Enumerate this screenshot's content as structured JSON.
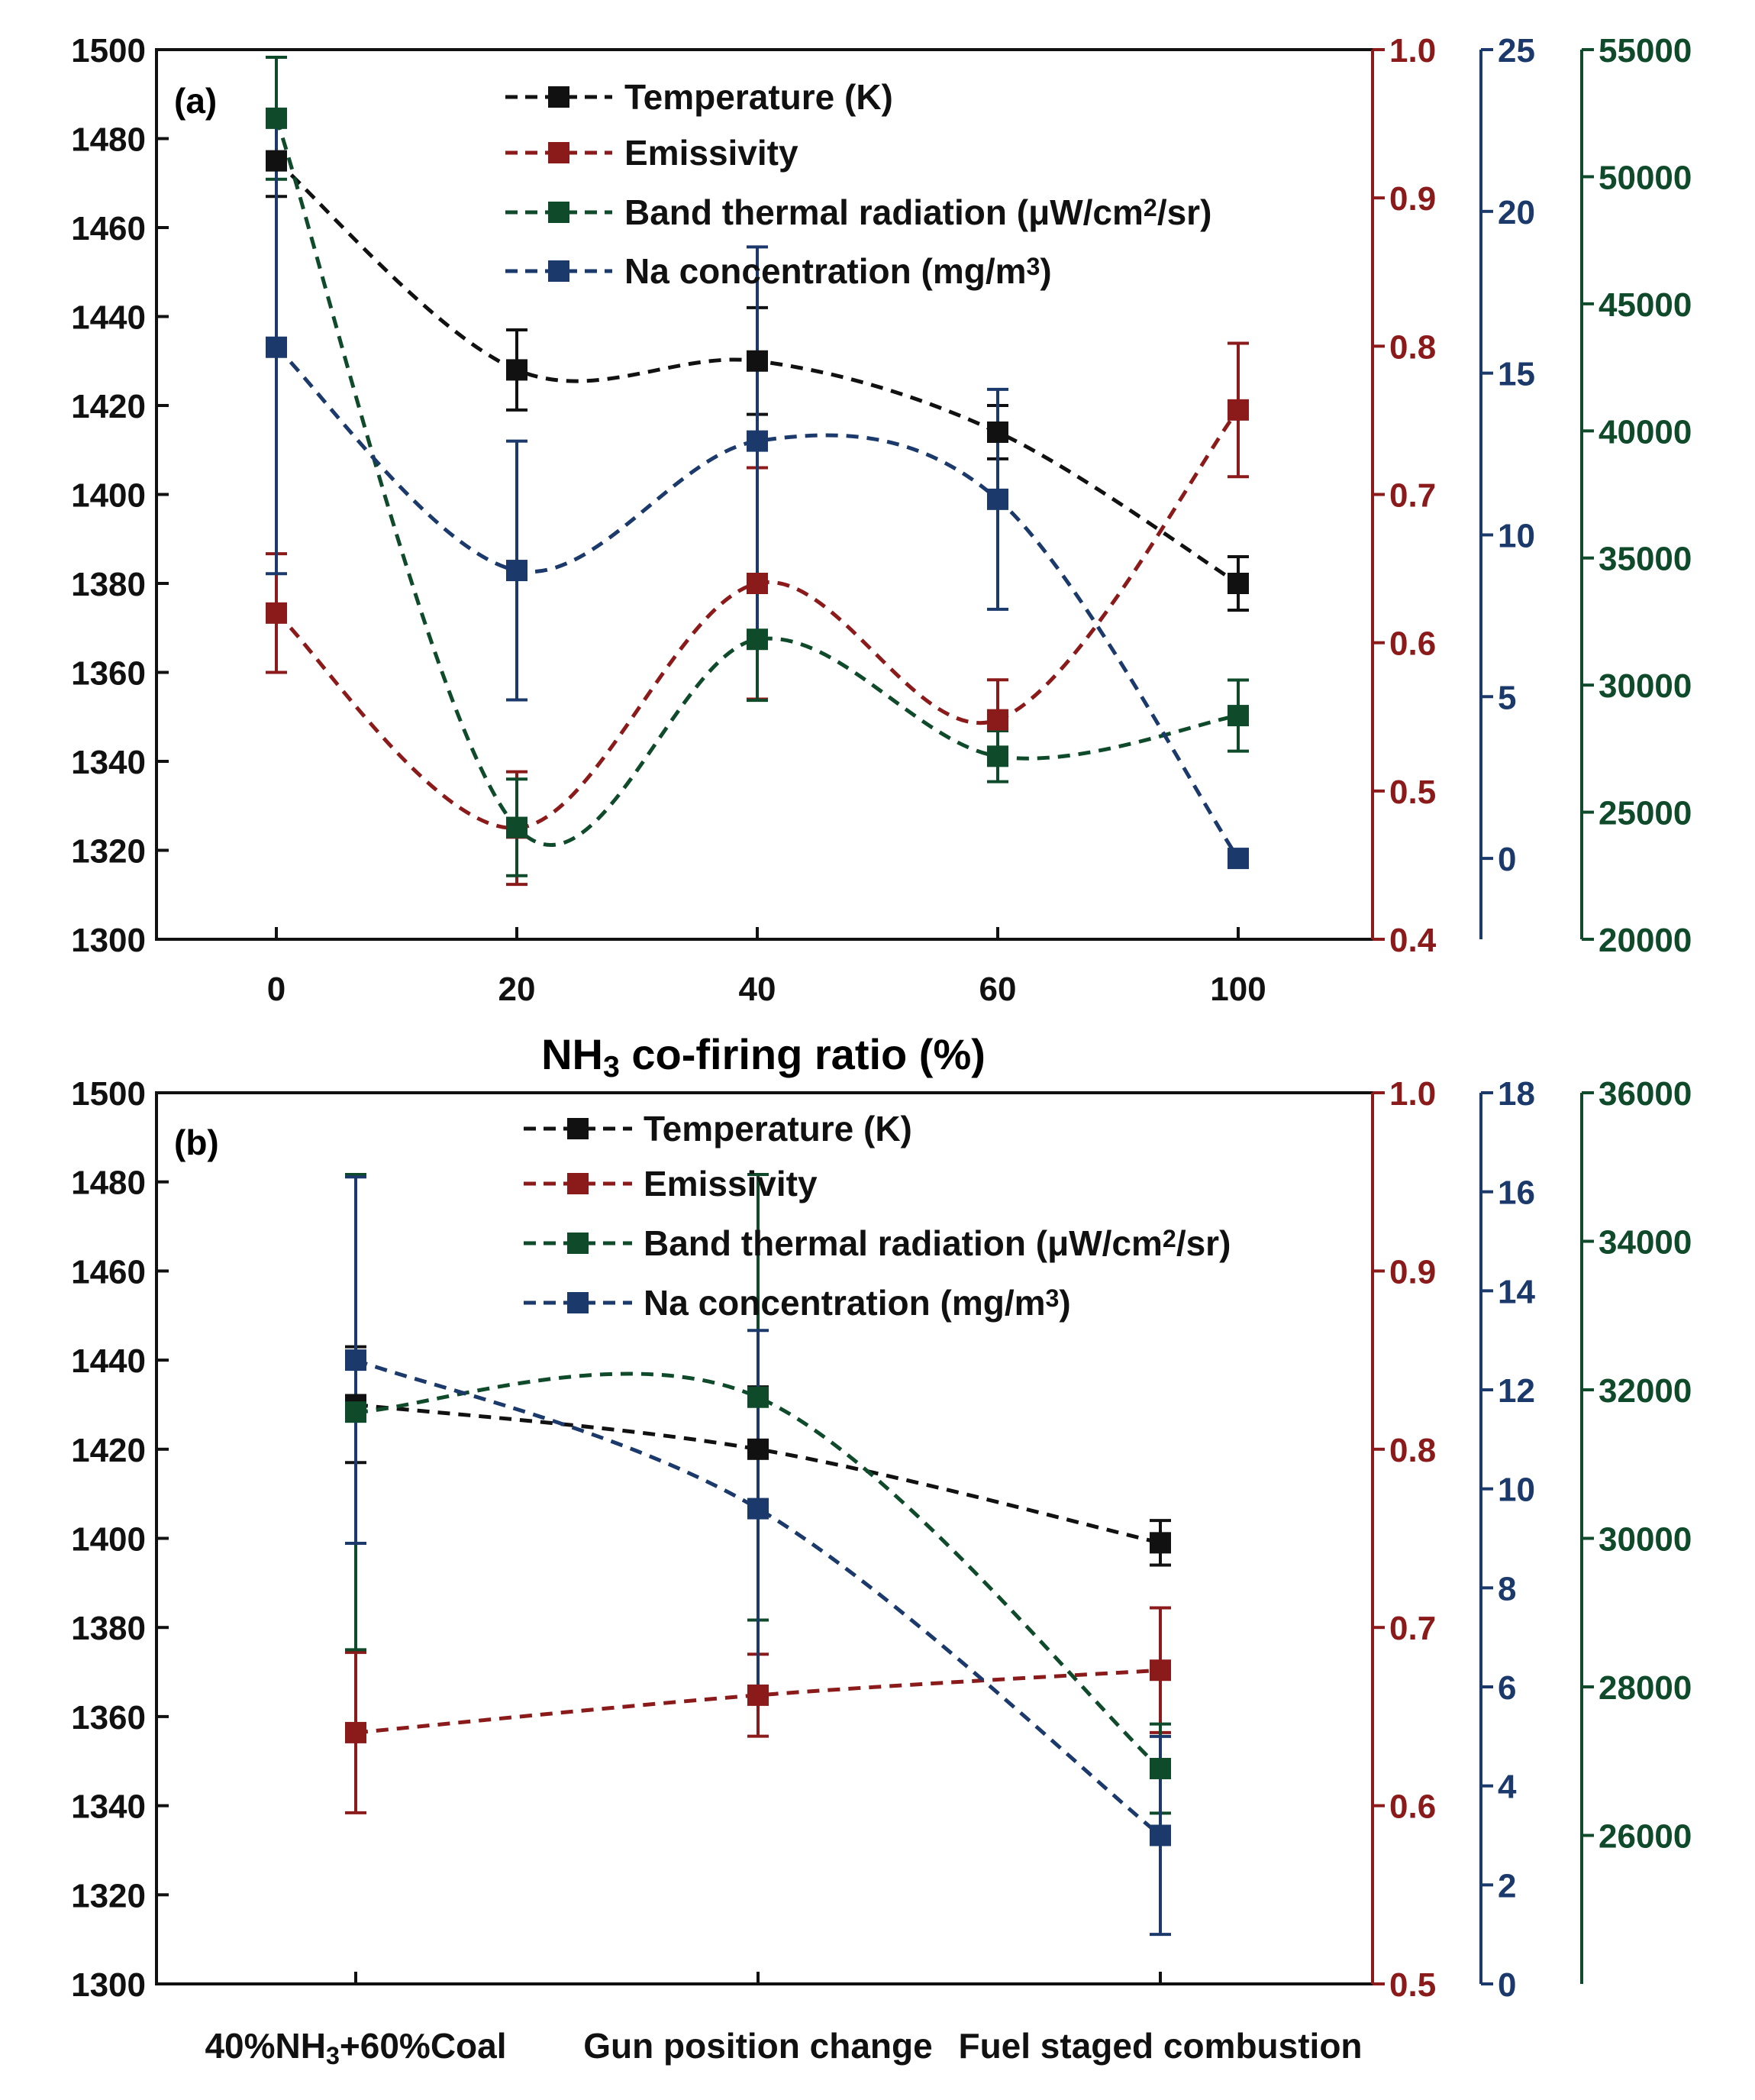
{
  "colors": {
    "temperature": "#111111",
    "emissivity": "#8b1a1a",
    "band": "#0f4a2a",
    "na": "#1b3a6b",
    "axis": "#111111"
  },
  "chart_data": [
    {
      "type": "line",
      "panel_label": "(a)",
      "xlabel": "NH3 co-firing ratio (%)",
      "x_categories": [
        "0",
        "20",
        "40",
        "60",
        "100"
      ],
      "axes": {
        "left": {
          "range": [
            1300,
            1500
          ],
          "ticks": [
            "1300",
            "1320",
            "1340",
            "1360",
            "1380",
            "1400",
            "1420",
            "1440",
            "1460",
            "1480",
            "1500"
          ]
        },
        "right1": {
          "range": [
            0.4,
            1.0
          ],
          "ticks": [
            "0.4",
            "0.5",
            "0.6",
            "0.7",
            "0.8",
            "0.9",
            "1.0"
          ]
        },
        "right2": {
          "range": [
            -2.5,
            25
          ],
          "ticks": [
            "0",
            "5",
            "10",
            "15",
            "20",
            "25"
          ]
        },
        "right3": {
          "range": [
            20000,
            55000
          ],
          "ticks": [
            "20000",
            "25000",
            "30000",
            "35000",
            "40000",
            "45000",
            "50000",
            "55000"
          ]
        }
      },
      "legend": [
        {
          "series": "temperature",
          "label": "Temperature (K)"
        },
        {
          "series": "emissivity",
          "label": "Emissivity"
        },
        {
          "series": "band",
          "label": "Band thermal radiation (μW/cm²/sr)"
        },
        {
          "series": "na",
          "label": "Na concentration (mg/m³)"
        }
      ],
      "series": [
        {
          "key": "temperature",
          "name": "Temperature (K)",
          "axis": "left",
          "values": [
            1475,
            1428,
            1430,
            1414,
            1380
          ],
          "errors": [
            8,
            9,
            12,
            6,
            6
          ]
        },
        {
          "key": "emissivity",
          "name": "Emissivity",
          "axis": "right1",
          "values": [
            0.62,
            0.475,
            0.64,
            0.548,
            0.757
          ],
          "errors": [
            0.04,
            0.038,
            0.078,
            0.027,
            0.045
          ]
        },
        {
          "key": "band",
          "name": "Band thermal radiation (μW/cm²/sr)",
          "axis": "right3",
          "values": [
            52300,
            24400,
            31800,
            27200,
            28800
          ],
          "errors": [
            2400,
            1900,
            2400,
            1000,
            1400
          ]
        },
        {
          "key": "na",
          "name": "Na concentration (mg/m³)",
          "axis": "right2",
          "values": [
            15.8,
            8.9,
            12.9,
            11.1,
            0
          ],
          "errors": [
            7,
            4,
            6,
            3.4,
            0
          ]
        }
      ]
    },
    {
      "type": "line",
      "panel_label": "(b)",
      "xlabel": "",
      "x_categories": [
        "40%NH3+60%Coal",
        "Gun position change",
        "Fuel staged combustion"
      ],
      "axes": {
        "left": {
          "range": [
            1300,
            1500
          ],
          "ticks": [
            "1300",
            "1320",
            "1340",
            "1360",
            "1380",
            "1400",
            "1420",
            "1440",
            "1460",
            "1480",
            "1500"
          ]
        },
        "right1": {
          "range": [
            0.5,
            1.0
          ],
          "ticks": [
            "0.5",
            "0.6",
            "0.7",
            "0.8",
            "0.9",
            "1.0"
          ]
        },
        "right2": {
          "range": [
            0,
            18
          ],
          "ticks": [
            "0",
            "2",
            "4",
            "6",
            "8",
            "10",
            "12",
            "14",
            "16",
            "18"
          ]
        },
        "right3": {
          "range": [
            24000,
            36000
          ],
          "ticks": [
            "26000",
            "28000",
            "30000",
            "32000",
            "34000",
            "36000"
          ]
        }
      },
      "legend": [
        {
          "series": "temperature",
          "label": "Temperature (K)"
        },
        {
          "series": "emissivity",
          "label": "Emissivity"
        },
        {
          "series": "band",
          "label": "Band thermal radiation (μW/cm²/sr)"
        },
        {
          "series": "na",
          "label": "Na concentration (mg/m³)"
        }
      ],
      "series": [
        {
          "key": "temperature",
          "name": "Temperature (K)",
          "axis": "left",
          "values": [
            1430,
            1420,
            1399
          ],
          "errors": [
            13,
            14,
            5
          ]
        },
        {
          "key": "emissivity",
          "name": "Emissivity",
          "axis": "right1",
          "values": [
            0.641,
            0.662,
            0.676
          ],
          "errors": [
            0.045,
            0.023,
            0.035
          ]
        },
        {
          "key": "band",
          "name": "Band thermal radiation (μW/cm²/sr)",
          "axis": "right3",
          "values": [
            31700,
            31900,
            26900
          ],
          "errors": [
            3200,
            3000,
            600
          ]
        },
        {
          "key": "na",
          "name": "Na concentration (mg/m³)",
          "axis": "right2",
          "values": [
            12.6,
            9.6,
            3.0
          ],
          "errors": [
            3.7,
            3.6,
            2
          ]
        }
      ]
    }
  ]
}
